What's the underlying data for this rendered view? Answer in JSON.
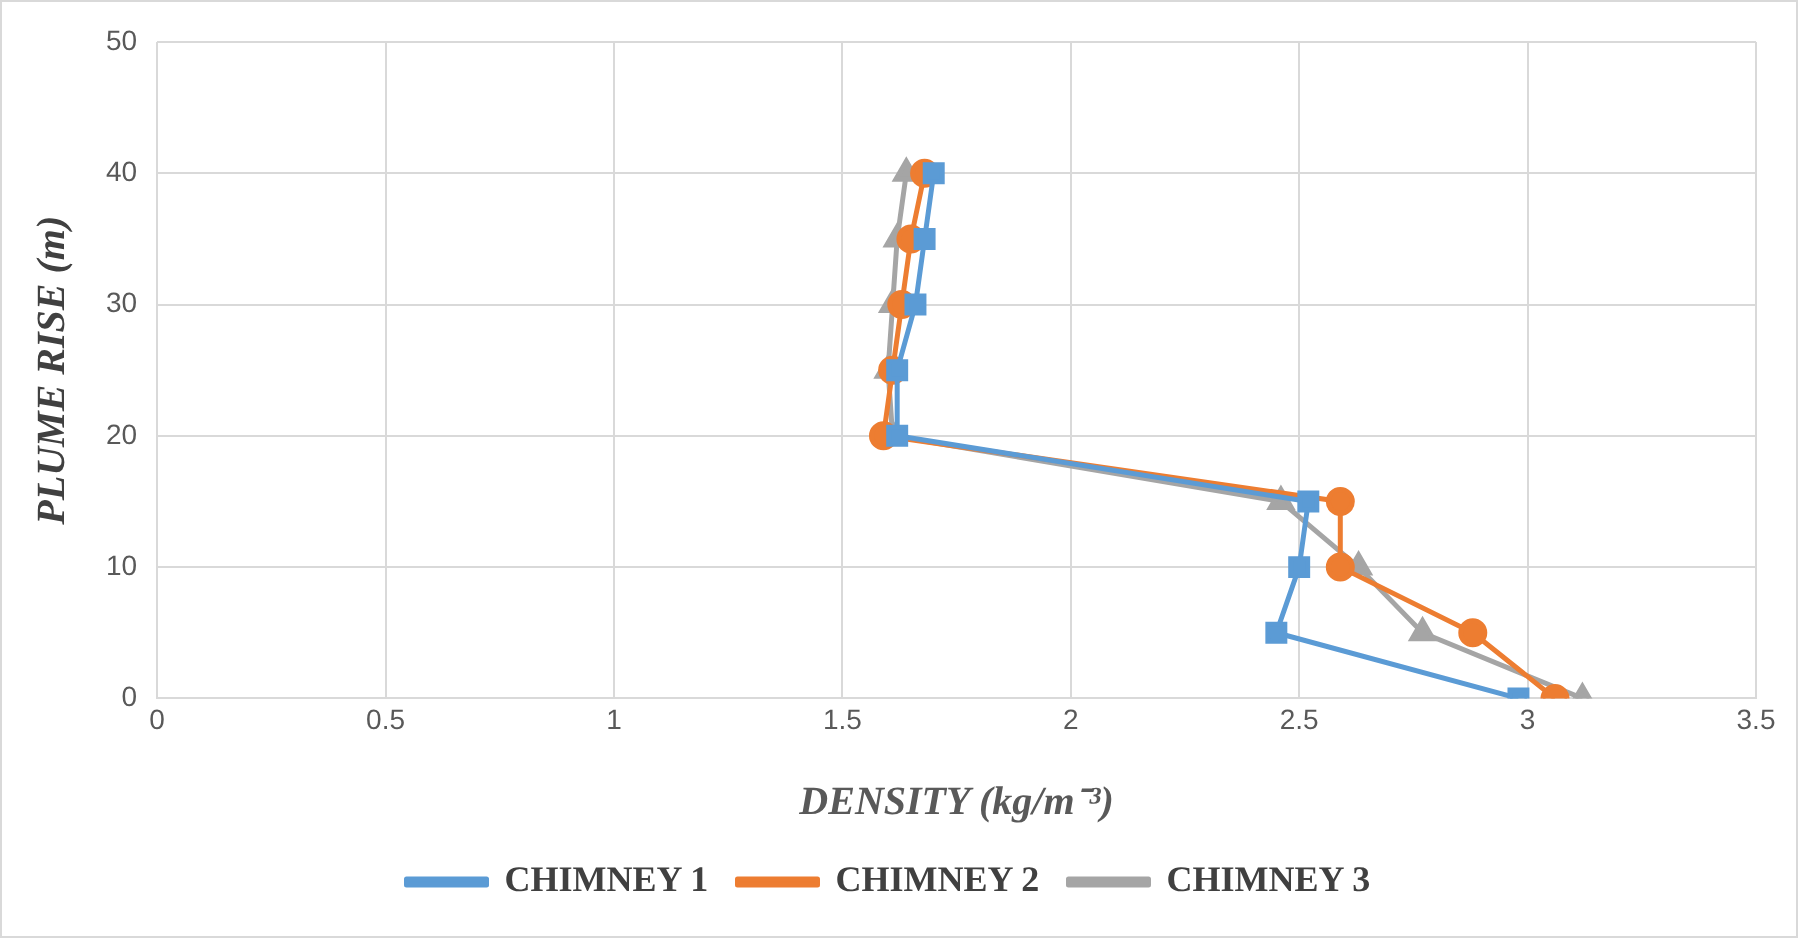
{
  "chart_data": {
    "type": "line",
    "xlabel": "DENSITY (kg/m⁻³)",
    "ylabel": "PLUME RISE (m)",
    "xlim": [
      0,
      3.5
    ],
    "xticks": [
      0,
      0.5,
      1,
      1.5,
      2,
      2.5,
      3,
      3.5
    ],
    "ylim": [
      0,
      50
    ],
    "yticks": [
      0,
      10,
      20,
      30,
      40,
      50
    ],
    "grid": true,
    "legend": "bottom",
    "line_style": "solid",
    "series": [
      {
        "name": "CHIMNEY 1",
        "color": "#5b9bd5",
        "marker": "square",
        "x": [
          2.98,
          2.45,
          2.5,
          2.52,
          1.62,
          1.62,
          1.66,
          1.68,
          1.7
        ],
        "values": [
          0,
          5,
          10,
          15,
          20,
          25,
          30,
          35,
          40
        ]
      },
      {
        "name": "CHIMNEY 2",
        "color": "#ed7d31",
        "marker": "circle",
        "x": [
          3.06,
          2.88,
          2.59,
          2.59,
          1.59,
          1.61,
          1.63,
          1.65,
          1.68
        ],
        "values": [
          0,
          5,
          10,
          15,
          20,
          25,
          30,
          35,
          40
        ]
      },
      {
        "name": "CHIMNEY 3",
        "color": "#a5a5a5",
        "marker": "triangle",
        "x": [
          3.12,
          2.77,
          2.63,
          2.46,
          1.61,
          1.6,
          1.61,
          1.62,
          1.64
        ],
        "values": [
          0,
          5,
          10,
          15,
          20,
          25,
          30,
          35,
          40
        ]
      }
    ]
  }
}
